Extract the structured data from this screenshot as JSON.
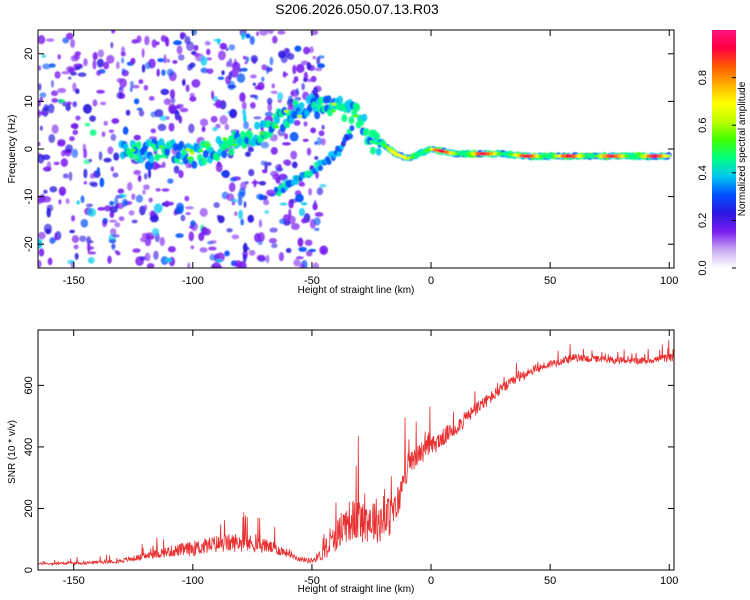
{
  "title": "S206.2026.050.07.13.R03",
  "chart_data": [
    {
      "type": "heatmap",
      "name": "spectrogram",
      "xlabel": "Height of straight line (km)",
      "ylabel": "Frequency (Hz)",
      "xlim": [
        -165,
        102
      ],
      "ylim": [
        -25,
        25
      ],
      "xticks": [
        -150,
        -100,
        -50,
        0,
        50,
        100
      ],
      "yticks": [
        -20,
        -10,
        0,
        10,
        20
      ],
      "colorbar": {
        "label": "Normalized spectral amplitude",
        "range": [
          0,
          1
        ],
        "ticks": [
          0.0,
          0.2,
          0.4,
          0.6,
          0.8
        ],
        "tick_labels": [
          "0.0",
          "0.2",
          "0.4",
          "0.6",
          "0.8"
        ],
        "colors": [
          "#ffffff",
          "#c8a8f0",
          "#7a1cf0",
          "#2a18e0",
          "#0050ff",
          "#00c8f0",
          "#00ff80",
          "#40ff00",
          "#c0ff00",
          "#ffff00",
          "#ffb000",
          "#ff5a00",
          "#ff0040",
          "#ff1480"
        ]
      },
      "ridge": {
        "x": [
          -130,
          -120,
          -110,
          -100,
          -90,
          -80,
          -70,
          -60,
          -50,
          -40,
          -30,
          -25,
          -20,
          -15,
          -10,
          -5,
          0,
          10,
          20,
          30,
          40,
          50,
          60,
          70,
          80,
          90,
          100
        ],
        "y": [
          -1,
          -0.5,
          0,
          -1.5,
          0,
          2,
          4,
          7,
          9,
          9,
          7,
          1.5,
          1,
          -1,
          -2,
          -1,
          0,
          -1,
          -1,
          -1,
          -1.5,
          -1.5,
          -1.5,
          -1.5,
          -1.5,
          -1.5,
          -1.5
        ]
      },
      "secondary_branch": {
        "x": [
          -65,
          -55,
          -45,
          -38,
          -33
        ],
        "y": [
          -9,
          -6,
          -3,
          0,
          4
        ]
      }
    },
    {
      "type": "line",
      "name": "snr",
      "xlabel": "Height of straight line (km)",
      "ylabel": "SNR (10 * v/v)",
      "xlim": [
        -165,
        102
      ],
      "ylim": [
        0,
        780
      ],
      "xticks": [
        -150,
        -100,
        -50,
        0,
        50,
        100
      ],
      "yticks": [
        0,
        200,
        400,
        600
      ],
      "color": "#e83030",
      "series": [
        {
          "name": "SNR",
          "x": [
            -165,
            -150,
            -140,
            -130,
            -120,
            -110,
            -100,
            -90,
            -80,
            -70,
            -60,
            -55,
            -50,
            -45,
            -40,
            -35,
            -30,
            -25,
            -20,
            -15,
            -10,
            -5,
            0,
            10,
            20,
            30,
            40,
            50,
            60,
            70,
            80,
            90,
            100
          ],
          "y": [
            20,
            22,
            25,
            30,
            45,
            60,
            70,
            85,
            90,
            80,
            55,
            35,
            30,
            55,
            110,
            160,
            160,
            165,
            160,
            190,
            330,
            380,
            400,
            460,
            530,
            590,
            640,
            670,
            690,
            685,
            680,
            680,
            690
          ],
          "spread": [
            8,
            10,
            12,
            15,
            25,
            40,
            55,
            65,
            70,
            55,
            30,
            18,
            20,
            50,
            110,
            150,
            160,
            170,
            160,
            140,
            90,
            80,
            70,
            60,
            50,
            40,
            35,
            30,
            28,
            25,
            25,
            25,
            30
          ]
        }
      ]
    }
  ]
}
